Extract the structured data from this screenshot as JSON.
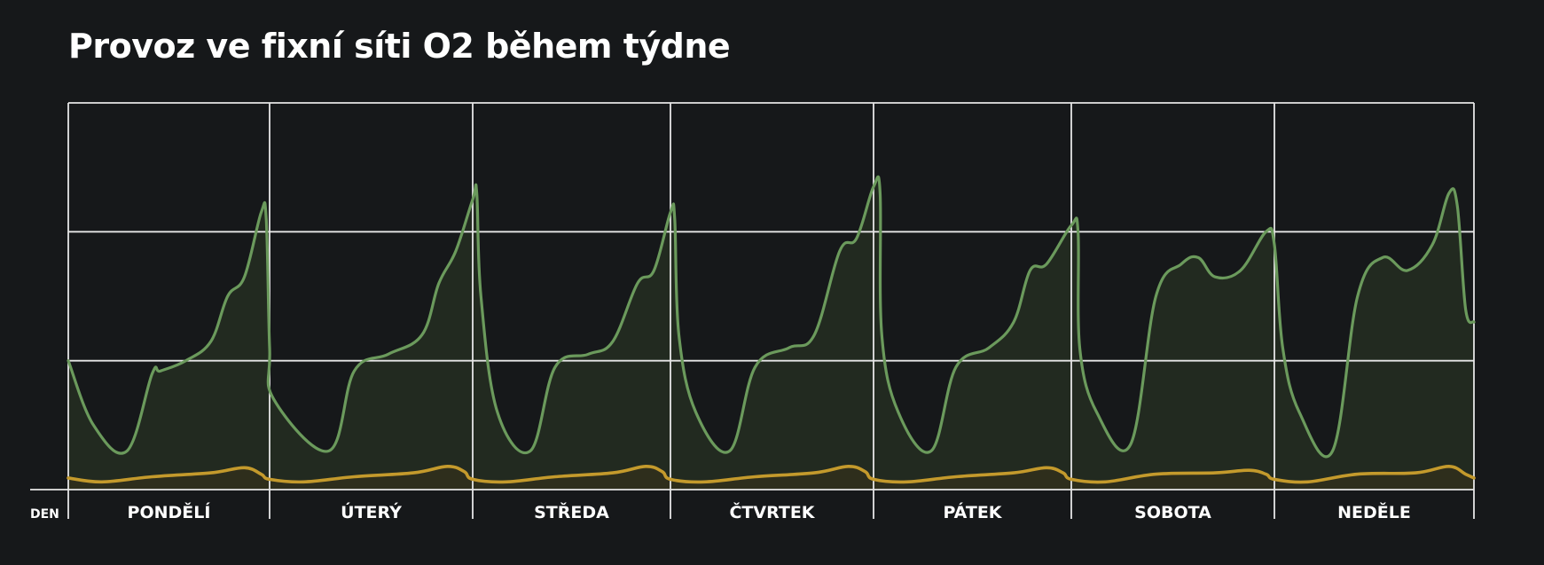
{
  "title": "Provoz ve fixní síti O2 během týdne",
  "chart_data": {
    "type": "area",
    "title": "Provoz ve fixní síti O2 během týdne",
    "xlabel": "DEN",
    "ylabel": "",
    "categories": [
      "PONDĚLÍ",
      "ÚTERÝ",
      "STŘEDA",
      "ČTVRTEK",
      "PÁTEK",
      "SOBOTA",
      "NEDĚLE"
    ],
    "x_unit": "hour",
    "xlim": [
      0,
      168
    ],
    "ylim": [
      0,
      3
    ],
    "grid": true,
    "legend": "none",
    "series": [
      {
        "values": [
          [
            0,
            1.0
          ],
          [
            3,
            0.5
          ],
          [
            7,
            0.3
          ],
          [
            10,
            0.9
          ],
          [
            11,
            0.92
          ],
          [
            14,
            1.0
          ],
          [
            17,
            1.15
          ],
          [
            19,
            1.5
          ],
          [
            21,
            1.65
          ],
          [
            23,
            2.15
          ],
          [
            23.6,
            2.1
          ],
          [
            24,
            1.1
          ],
          [
            24.5,
            0.7
          ],
          [
            31,
            0.3
          ],
          [
            34,
            0.92
          ],
          [
            38,
            1.05
          ],
          [
            42,
            1.2
          ],
          [
            44,
            1.6
          ],
          [
            46,
            1.85
          ],
          [
            48,
            2.25
          ],
          [
            48.5,
            2.3
          ],
          [
            49,
            1.5
          ],
          [
            51,
            0.6
          ],
          [
            55,
            0.3
          ],
          [
            58,
            0.95
          ],
          [
            62,
            1.05
          ],
          [
            65,
            1.15
          ],
          [
            68,
            1.6
          ],
          [
            70,
            1.7
          ],
          [
            72,
            2.15
          ],
          [
            72.5,
            2.1
          ],
          [
            73,
            1.2
          ],
          [
            75,
            0.6
          ],
          [
            79,
            0.3
          ],
          [
            82,
            0.95
          ],
          [
            86,
            1.1
          ],
          [
            89,
            1.2
          ],
          [
            92,
            1.85
          ],
          [
            94,
            1.95
          ],
          [
            96,
            2.35
          ],
          [
            96.8,
            2.3
          ],
          [
            97,
            1.2
          ],
          [
            99,
            0.6
          ],
          [
            103,
            0.3
          ],
          [
            106,
            0.95
          ],
          [
            110,
            1.1
          ],
          [
            113,
            1.3
          ],
          [
            115,
            1.7
          ],
          [
            117,
            1.75
          ],
          [
            120,
            2.05
          ],
          [
            120.8,
            2.0
          ],
          [
            121,
            1.1
          ],
          [
            123,
            0.6
          ],
          [
            127,
            0.35
          ],
          [
            130,
            1.5
          ],
          [
            133,
            1.75
          ],
          [
            135,
            1.8
          ],
          [
            137,
            1.65
          ],
          [
            140,
            1.7
          ],
          [
            143,
            2.0
          ],
          [
            144,
            1.9
          ],
          [
            145,
            1.1
          ],
          [
            147,
            0.6
          ],
          [
            151,
            0.3
          ],
          [
            154,
            1.5
          ],
          [
            157,
            1.8
          ],
          [
            160,
            1.7
          ],
          [
            163,
            1.9
          ],
          [
            165,
            2.3
          ],
          [
            166,
            2.2
          ],
          [
            167,
            1.4
          ],
          [
            168,
            1.3
          ]
        ]
      },
      {
        "values": [
          [
            0,
            0.09
          ],
          [
            4,
            0.06
          ],
          [
            10,
            0.1
          ],
          [
            17,
            0.13
          ],
          [
            21,
            0.17
          ],
          [
            23,
            0.12
          ],
          [
            24,
            0.08
          ],
          [
            28,
            0.06
          ],
          [
            34,
            0.1
          ],
          [
            41,
            0.13
          ],
          [
            45,
            0.18
          ],
          [
            47,
            0.14
          ],
          [
            48,
            0.08
          ],
          [
            52,
            0.06
          ],
          [
            58,
            0.1
          ],
          [
            65,
            0.13
          ],
          [
            69,
            0.18
          ],
          [
            71,
            0.14
          ],
          [
            72,
            0.08
          ],
          [
            76,
            0.06
          ],
          [
            82,
            0.1
          ],
          [
            89,
            0.13
          ],
          [
            93,
            0.18
          ],
          [
            95,
            0.14
          ],
          [
            96,
            0.08
          ],
          [
            100,
            0.06
          ],
          [
            106,
            0.1
          ],
          [
            113,
            0.13
          ],
          [
            117,
            0.17
          ],
          [
            119,
            0.13
          ],
          [
            120,
            0.08
          ],
          [
            124,
            0.06
          ],
          [
            130,
            0.12
          ],
          [
            137,
            0.13
          ],
          [
            141,
            0.15
          ],
          [
            143,
            0.12
          ],
          [
            144,
            0.08
          ],
          [
            148,
            0.06
          ],
          [
            154,
            0.12
          ],
          [
            161,
            0.13
          ],
          [
            165,
            0.18
          ],
          [
            167,
            0.12
          ],
          [
            168,
            0.09
          ]
        ]
      }
    ],
    "colors": {
      "primary_line": "#6b9a5c",
      "primary_fill": "#222a20",
      "secondary_line": "#c49a2c",
      "grid": "#e6e6e6"
    }
  }
}
